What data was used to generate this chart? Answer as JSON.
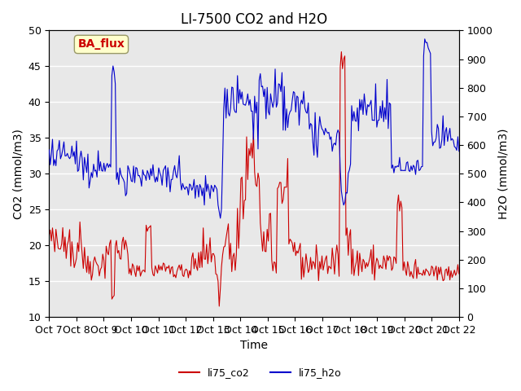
{
  "title": "LI-7500 CO2 and H2O",
  "xlabel": "Time",
  "ylabel_left": "CO2 (mmol/m3)",
  "ylabel_right": "H2O (mmol/m3)",
  "ylim_left": [
    10,
    50
  ],
  "ylim_right": [
    0,
    1000
  ],
  "yticks_left": [
    10,
    15,
    20,
    25,
    30,
    35,
    40,
    45,
    50
  ],
  "yticks_right": [
    0,
    100,
    200,
    300,
    400,
    500,
    600,
    700,
    800,
    900,
    1000
  ],
  "xtick_labels": [
    "Oct 7",
    "Oct 8",
    "Oct 9",
    "Oct 10",
    "Oct 11",
    "Oct 12",
    "Oct 13",
    "Oct 14",
    "Oct 15",
    "Oct 16",
    "Oct 17",
    "Oct 18",
    "Oct 19",
    "Oct 20",
    "Oct 21",
    "Oct 22"
  ],
  "color_co2": "#cc0000",
  "color_h2o": "#0000cc",
  "legend_label_co2": "li75_co2",
  "legend_label_h2o": "li75_h2o",
  "annotation_text": "BA_flux",
  "annotation_color": "#cc0000",
  "annotation_bg": "#ffffcc",
  "background_color": "#e8e8e8",
  "grid_color": "#ffffff",
  "title_fontsize": 12,
  "axis_fontsize": 10,
  "tick_fontsize": 9
}
